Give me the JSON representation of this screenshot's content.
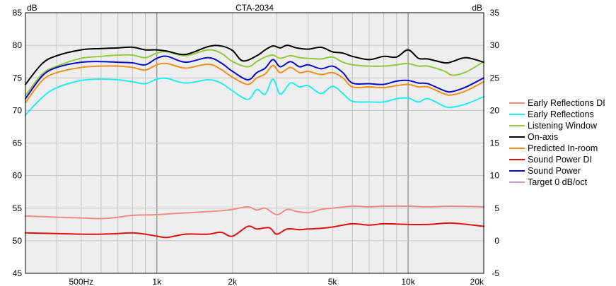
{
  "chart_data": {
    "type": "line",
    "title": "CTA-2034",
    "ylabel_left": "dB",
    "ylabel_right": "dB",
    "x_scale": "log",
    "xlim": [
      300,
      20000
    ],
    "ylim_left": [
      45,
      85
    ],
    "ylim_right": [
      -5,
      35
    ],
    "x_ticks": [
      {
        "value": 500,
        "label": "500Hz"
      },
      {
        "value": 1000,
        "label": "1k"
      },
      {
        "value": 2000,
        "label": "2k"
      },
      {
        "value": 5000,
        "label": "5k"
      },
      {
        "value": 10000,
        "label": "10k"
      },
      {
        "value": 20000,
        "label": "20k"
      }
    ],
    "x_grid": [
      400,
      500,
      600,
      700,
      800,
      900,
      1000,
      2000,
      3000,
      4000,
      5000,
      6000,
      7000,
      8000,
      9000,
      10000,
      20000
    ],
    "x_grid_major": [
      1000,
      10000
    ],
    "y_ticks_left": [
      45,
      50,
      55,
      60,
      65,
      70,
      75,
      80,
      85
    ],
    "y_ticks_right": [
      -5,
      0,
      5,
      10,
      15,
      20,
      25,
      30,
      35
    ],
    "grid": true,
    "legend_position": "right",
    "series": [
      {
        "name": "Early Reflections DI",
        "color": "#f08c84",
        "axis": "right",
        "x": [
          300,
          400,
          500,
          600,
          700,
          800,
          1000,
          1200,
          1500,
          1800,
          2000,
          2300,
          2500,
          2700,
          3000,
          3300,
          3600,
          4000,
          4500,
          5000,
          6000,
          7000,
          8000,
          10000,
          12000,
          15000,
          20000
        ],
        "y": [
          3.8,
          3.6,
          3.5,
          3.4,
          3.6,
          3.9,
          4.0,
          4.2,
          4.4,
          4.6,
          4.8,
          5.2,
          4.7,
          5.0,
          4.0,
          4.8,
          4.5,
          4.3,
          4.8,
          5.0,
          5.3,
          5.2,
          5.3,
          5.3,
          5.2,
          5.3,
          5.2
        ]
      },
      {
        "name": "Early Reflections",
        "color": "#22eeee",
        "axis": "left",
        "x": [
          300,
          350,
          400,
          500,
          600,
          700,
          800,
          900,
          1000,
          1100,
          1300,
          1600,
          1800,
          2000,
          2300,
          2500,
          2700,
          2900,
          3100,
          3400,
          3700,
          4000,
          4500,
          5000,
          5500,
          6000,
          7000,
          8000,
          9000,
          10000,
          11000,
          12000,
          14000,
          15000,
          17000,
          20000
        ],
        "y": [
          69.3,
          72.0,
          73.5,
          74.6,
          74.8,
          74.7,
          74.4,
          74.1,
          74.8,
          74.9,
          74.2,
          74.7,
          74.2,
          73.0,
          71.7,
          73.2,
          72.5,
          74.8,
          72.5,
          74.2,
          73.6,
          73.8,
          72.6,
          73.7,
          72.6,
          71.4,
          71.3,
          71.3,
          71.8,
          71.9,
          71.3,
          71.8,
          70.6,
          70.5,
          71.0,
          72.1
        ]
      },
      {
        "name": "Listening Window",
        "color": "#93c83e",
        "axis": "left",
        "x": [
          300,
          350,
          400,
          500,
          600,
          700,
          800,
          900,
          1000,
          1100,
          1300,
          1600,
          1800,
          2000,
          2300,
          2500,
          2700,
          2900,
          3100,
          3400,
          3700,
          4000,
          4500,
          5000,
          5500,
          6000,
          7000,
          8000,
          9000,
          10000,
          11000,
          12000,
          14000,
          15000,
          17000,
          20000
        ],
        "y": [
          72.3,
          75.6,
          76.8,
          78.0,
          78.3,
          78.5,
          78.5,
          78.1,
          78.8,
          79.0,
          78.4,
          79.3,
          78.8,
          77.5,
          76.7,
          77.5,
          78.2,
          78.5,
          78.0,
          78.4,
          78.1,
          78.0,
          77.9,
          78.2,
          77.4,
          77.0,
          76.8,
          76.8,
          77.0,
          77.2,
          76.8,
          76.8,
          76.0,
          75.4,
          75.9,
          77.5
        ]
      },
      {
        "name": "On-axis",
        "color": "#000000",
        "axis": "left",
        "x": [
          300,
          350,
          400,
          500,
          600,
          700,
          800,
          900,
          1000,
          1100,
          1300,
          1600,
          1800,
          2000,
          2200,
          2500,
          2700,
          2900,
          3100,
          3300,
          3600,
          4000,
          4500,
          5000,
          5500,
          6000,
          7000,
          8000,
          9000,
          10000,
          11000,
          12000,
          14000,
          15000,
          17000,
          20000
        ],
        "y": [
          74.0,
          77.2,
          78.4,
          79.3,
          79.5,
          79.6,
          79.7,
          79.3,
          79.3,
          79.1,
          78.6,
          79.8,
          79.9,
          79.2,
          77.6,
          78.4,
          79.3,
          79.9,
          79.6,
          80.0,
          79.6,
          79.4,
          79.7,
          79.0,
          78.8,
          78.3,
          77.8,
          78.3,
          78.2,
          79.3,
          78.0,
          77.9,
          77.3,
          77.5,
          78.1,
          77.4
        ]
      },
      {
        "name": "Predicted In-room",
        "color": "#f0901c",
        "axis": "left",
        "x": [
          300,
          350,
          400,
          500,
          600,
          700,
          800,
          900,
          1000,
          1100,
          1300,
          1600,
          1800,
          2000,
          2300,
          2500,
          2700,
          2900,
          3100,
          3400,
          3700,
          4000,
          4500,
          5000,
          5500,
          6000,
          7000,
          8000,
          9000,
          10000,
          11000,
          12000,
          14000,
          15000,
          17000,
          20000
        ],
        "y": [
          71.2,
          74.6,
          75.8,
          76.6,
          76.8,
          76.8,
          76.6,
          76.2,
          77.0,
          77.2,
          76.5,
          77.1,
          76.3,
          75.1,
          74.0,
          75.0,
          75.6,
          76.9,
          75.8,
          76.6,
          75.8,
          76.0,
          75.5,
          75.8,
          75.0,
          73.6,
          73.6,
          73.5,
          73.8,
          74.0,
          73.6,
          73.6,
          72.5,
          72.4,
          73.0,
          74.4
        ]
      },
      {
        "name": "Sound Power DI",
        "color": "#e01010",
        "axis": "right",
        "x": [
          300,
          400,
          500,
          600,
          700,
          800,
          900,
          1000,
          1100,
          1300,
          1600,
          1800,
          2000,
          2300,
          2500,
          2800,
          3000,
          3300,
          3700,
          4000,
          4500,
          5000,
          6000,
          7000,
          8000,
          10000,
          12000,
          15000,
          20000
        ],
        "y": [
          1.2,
          1.1,
          1.0,
          1.0,
          1.1,
          1.2,
          1.0,
          0.7,
          0.5,
          1.0,
          1.0,
          1.3,
          0.7,
          2.2,
          1.8,
          2.0,
          1.0,
          1.8,
          1.7,
          1.8,
          1.9,
          2.1,
          2.6,
          2.4,
          2.6,
          2.5,
          2.5,
          2.7,
          2.2
        ]
      },
      {
        "name": "Sound Power",
        "color": "#0a0ac8",
        "axis": "left",
        "x": [
          300,
          350,
          400,
          500,
          600,
          700,
          800,
          900,
          1000,
          1100,
          1300,
          1600,
          1800,
          2000,
          2300,
          2500,
          2700,
          2900,
          3100,
          3400,
          3700,
          4000,
          4500,
          5000,
          5500,
          6000,
          7000,
          8000,
          9000,
          10000,
          11000,
          12000,
          14000,
          15000,
          17000,
          20000
        ],
        "y": [
          71.8,
          75.3,
          76.6,
          77.4,
          77.5,
          77.4,
          77.3,
          77.0,
          78.0,
          78.3,
          77.4,
          78.1,
          77.3,
          76.0,
          74.7,
          75.8,
          76.5,
          77.8,
          76.7,
          77.5,
          76.7,
          77.0,
          76.4,
          76.8,
          75.8,
          74.2,
          74.1,
          74.0,
          74.5,
          74.6,
          74.2,
          74.1,
          73.0,
          72.9,
          73.6,
          75.0
        ]
      },
      {
        "name": "Target 0 dB/oct",
        "color": "#9a2c9a",
        "axis": "left",
        "x": [],
        "y": []
      }
    ]
  }
}
